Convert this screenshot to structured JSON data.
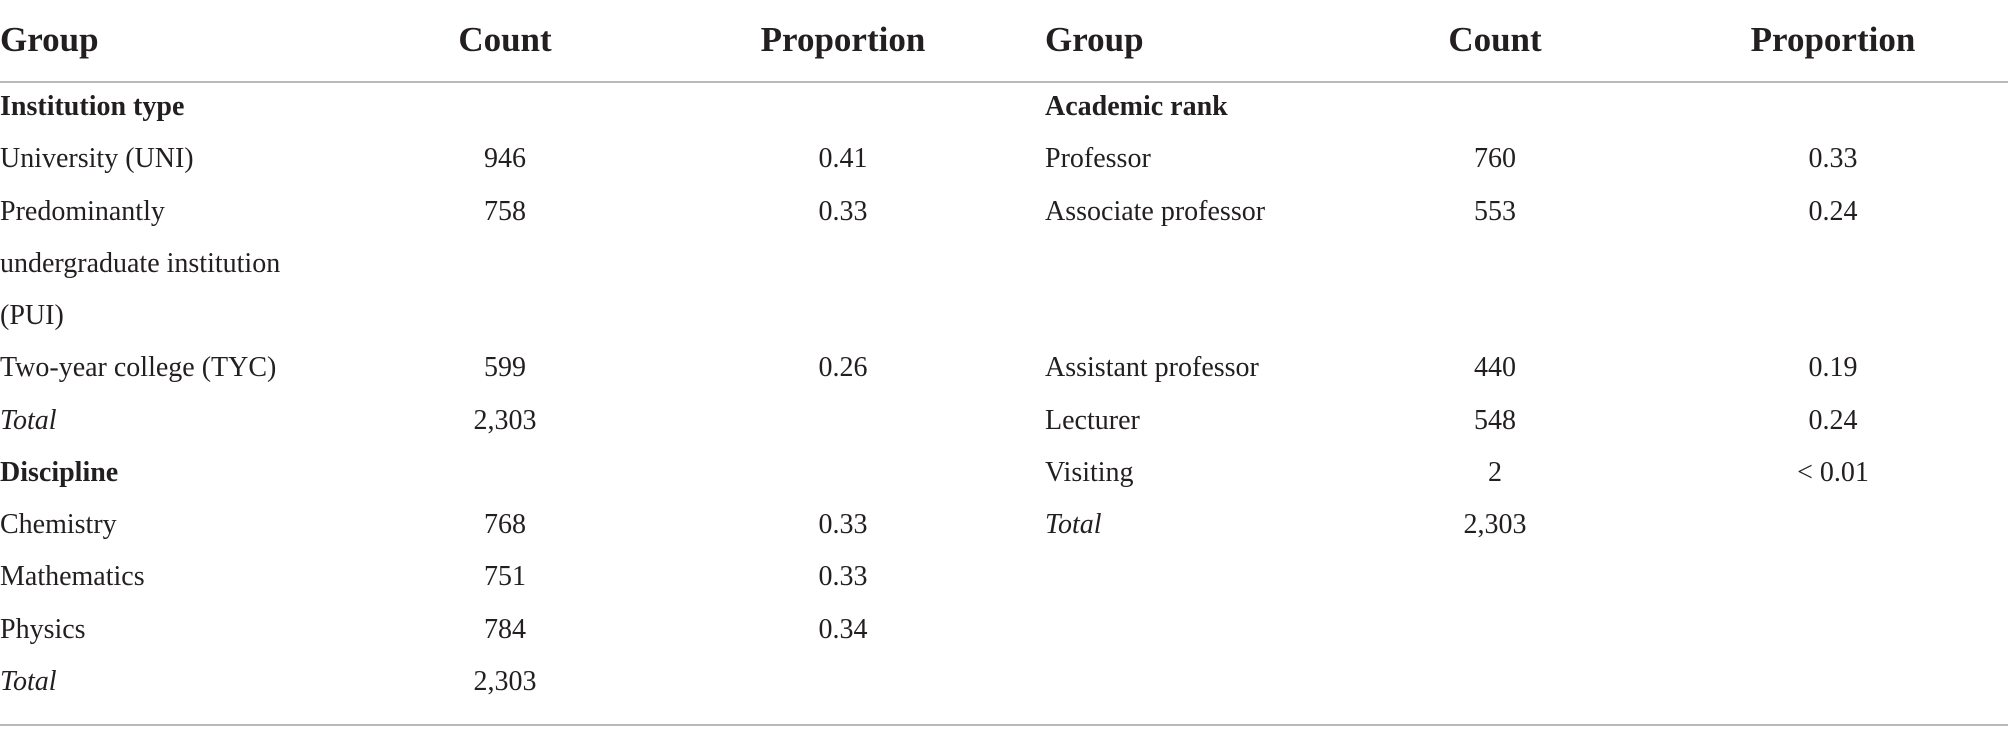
{
  "headers": {
    "left": {
      "group": "Group",
      "count": "Count",
      "proportion": "Proportion"
    },
    "right": {
      "group": "Group",
      "count": "Count",
      "proportion": "Proportion"
    }
  },
  "left_table": {
    "sections": [
      {
        "title": "Institution type",
        "rows": [
          {
            "group": "University (UNI)",
            "count": "946",
            "proportion": "0.41"
          },
          {
            "group_lines": [
              "Predominantly",
              "undergraduate institution",
              "(PUI)"
            ],
            "count": "758",
            "proportion": "0.33"
          },
          {
            "group": "Two-year college (TYC)",
            "count": "599",
            "proportion": "0.26"
          }
        ],
        "total": {
          "label": "Total",
          "count": "2,303"
        }
      },
      {
        "title": "Discipline",
        "rows": [
          {
            "group": "Chemistry",
            "count": "768",
            "proportion": "0.33"
          },
          {
            "group": "Mathematics",
            "count": "751",
            "proportion": "0.33"
          },
          {
            "group": "Physics",
            "count": "784",
            "proportion": "0.34"
          }
        ],
        "total": {
          "label": "Total",
          "count": "2,303"
        }
      }
    ]
  },
  "right_table": {
    "sections": [
      {
        "title": "Academic rank",
        "rows": [
          {
            "group": "Professor",
            "count": "760",
            "proportion": "0.33"
          },
          {
            "group": "Associate professor",
            "count": "553",
            "proportion": "0.24"
          },
          {
            "group": "Assistant professor",
            "count": "440",
            "proportion": "0.19"
          },
          {
            "group": "Lecturer",
            "count": "548",
            "proportion": "0.24"
          },
          {
            "group": "Visiting",
            "count": "2",
            "proportion": "< 0.01"
          }
        ],
        "total": {
          "label": "Total",
          "count": "2,303"
        }
      }
    ]
  }
}
